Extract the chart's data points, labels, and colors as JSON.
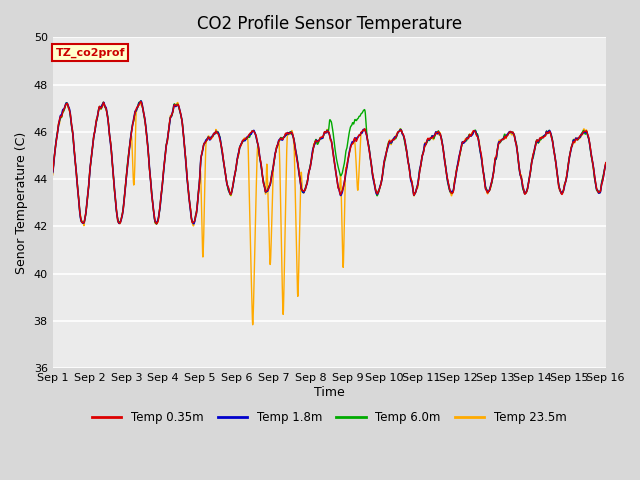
{
  "title": "CO2 Profile Sensor Temperature",
  "ylabel": "Senor Temperature (C)",
  "xlabel": "Time",
  "ylim": [
    36,
    50
  ],
  "yticks": [
    36,
    38,
    40,
    42,
    44,
    46,
    48,
    50
  ],
  "x_labels": [
    "Sep 1",
    "Sep 2",
    "Sep 3",
    "Sep 4",
    "Sep 5",
    "Sep 6",
    "Sep 7",
    "Sep 8",
    "Sep 9",
    "Sep 10",
    "Sep 11",
    "Sep 12",
    "Sep 13",
    "Sep 14",
    "Sep 15",
    "Sep 16"
  ],
  "annotation_text": "TZ_co2prof",
  "annotation_bg": "#ffffcc",
  "annotation_border": "#cc0000",
  "series_colors": [
    "#dd0000",
    "#0000cc",
    "#00aa00",
    "#ffaa00"
  ],
  "series_labels": [
    "Temp 0.35m",
    "Temp 1.8m",
    "Temp 6.0m",
    "Temp 23.5m"
  ],
  "plot_bg": "#ebebeb",
  "grid_color": "#ffffff",
  "fig_bg": "#d8d8d8",
  "title_fontsize": 12,
  "axis_fontsize": 9,
  "tick_fontsize": 8,
  "orange_dips": [
    [
      2.15,
      2.25,
      43.5
    ],
    [
      4.0,
      4.15,
      40.0
    ],
    [
      5.3,
      5.55,
      37.3
    ],
    [
      5.8,
      6.0,
      40.0
    ],
    [
      6.15,
      6.35,
      37.6
    ],
    [
      6.55,
      6.75,
      38.5
    ],
    [
      7.8,
      7.95,
      39.5
    ],
    [
      8.2,
      8.35,
      43.3
    ]
  ]
}
